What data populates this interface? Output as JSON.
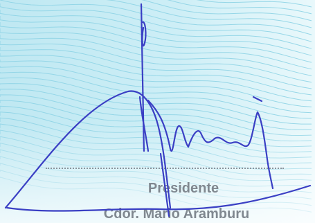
{
  "signature_block": {
    "title": "Presidente",
    "name": "Cdor. Mario Aramburu"
  },
  "colors": {
    "paper_tint": "#c9ecf4",
    "paper_line": "#8fd4e6",
    "ink": "#3a3fc4",
    "print_gray": "#808890"
  }
}
